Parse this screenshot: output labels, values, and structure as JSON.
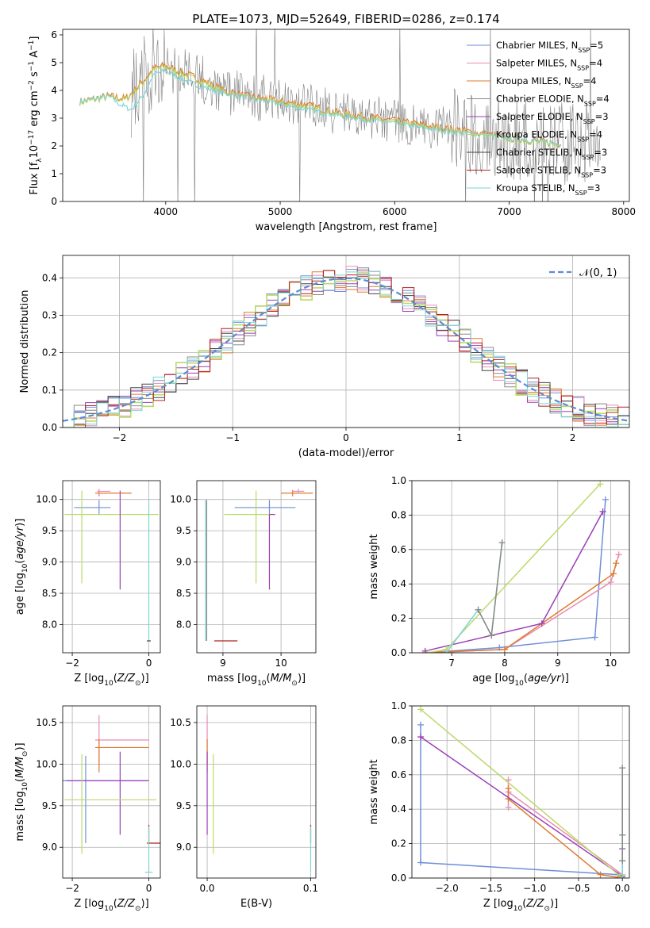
{
  "figure_title": "PLATE=1073, MJD=52649, FIBERID=0286, z=0.174",
  "colors": {
    "chabrier_miles": "#6f8fd9",
    "salpeter_miles": "#e88db5",
    "kroupa_miles": "#e07a2f",
    "chabrier_elodie": "#888888",
    "salpeter_elodie": "#9b3fb5",
    "kroupa_elodie": "#bcd96a",
    "chabrier_stelib": "#444444",
    "salpeter_stelib": "#b22222",
    "kroupa_stelib": "#7fd3d3",
    "data": "#808080",
    "normal_curve": "#5b8bd6"
  },
  "chart_data": [
    {
      "type": "line",
      "name": "spectrum",
      "xlabel": "wavelength [Angstrom, rest frame]",
      "ylabel": "Flux [f_λ 10^-17 erg cm^-2 s^-1 A^-1]",
      "xlim": [
        3100,
        8050
      ],
      "ylim": [
        0,
        6.2
      ],
      "xticks": [
        4000,
        5000,
        6000,
        7000,
        8000
      ],
      "yticks": [
        0,
        1,
        2,
        3,
        4,
        5,
        6
      ],
      "legend": [
        {
          "label": "Chabrier MILES, N",
          "sub": "SSP",
          "value": "=5"
        },
        {
          "label": "Salpeter MILES, N",
          "sub": "SSP",
          "value": "=4"
        },
        {
          "label": "Kroupa MILES, N",
          "sub": "SSP",
          "value": "=4"
        },
        {
          "label": "Chabrier ELODIE, N",
          "sub": "SSP",
          "value": "=4"
        },
        {
          "label": "Salpeter ELODIE, N",
          "sub": "SSP",
          "value": "=3"
        },
        {
          "label": "Kroupa ELODIE, N",
          "sub": "SSP",
          "value": "=4"
        },
        {
          "label": "Chabrier STELIB, N",
          "sub": "SSP",
          "value": "=3"
        },
        {
          "label": "Salpeter STELIB, N",
          "sub": "SSP",
          "value": "=3"
        },
        {
          "label": "Kroupa STELIB, N",
          "sub": "SSP",
          "value": "=3"
        }
      ],
      "continuum_x": [
        3250,
        3500,
        3650,
        3750,
        3900,
        4000,
        4100,
        4300,
        4500,
        4700,
        5000,
        5200,
        5500,
        6000,
        6500,
        7000,
        7200,
        7400
      ],
      "continuum_y": [
        3.6,
        3.8,
        3.7,
        4.1,
        4.8,
        4.9,
        4.7,
        4.4,
        4.0,
        3.8,
        3.6,
        3.5,
        3.2,
        2.9,
        2.6,
        2.3,
        2.2,
        2.1
      ],
      "blue_model_x": [
        3250,
        3500,
        3600,
        3700,
        3800,
        3900,
        4000,
        4200,
        4500,
        5000,
        5500,
        6000,
        6500,
        7000,
        7400
      ],
      "blue_model_y": [
        3.6,
        3.8,
        3.5,
        3.3,
        3.8,
        4.6,
        4.7,
        4.3,
        3.9,
        3.5,
        3.1,
        2.8,
        2.5,
        2.3,
        2.1
      ],
      "noise_range": [
        3700,
        7800
      ]
    },
    {
      "type": "histogram",
      "name": "residuals",
      "xlabel": "(data-model)/error",
      "ylabel": "Normed distribution",
      "xlim": [
        -2.5,
        2.5
      ],
      "ylim": [
        0,
        0.46
      ],
      "xticks": [
        -2,
        -1,
        0,
        1,
        2
      ],
      "yticks": [
        0.0,
        0.1,
        0.2,
        0.3,
        0.4
      ],
      "bin_width": 0.1,
      "legend_label": "𝒩(0, 1)",
      "curve": {
        "mean": 0,
        "sigma": 1
      }
    },
    {
      "type": "errorbar",
      "name": "age-vs-Z",
      "xlabel": "Z [log10(Z/Z⊙)]",
      "ylabel": "age  [log10(age/yr)]",
      "xlim": [
        -2.25,
        0.3
      ],
      "ylim": [
        7.55,
        10.3
      ],
      "xticks": [
        -2,
        0
      ],
      "yticks": [
        8.0,
        8.5,
        9.0,
        9.5,
        10.0
      ],
      "points": [
        {
          "c": "chabrier_miles",
          "x": -1.3,
          "y": 9.87,
          "xe": [
            0.65,
            0.3
          ],
          "ye": [
            0.12,
            0.12
          ]
        },
        {
          "c": "kroupa_miles",
          "x": -1.3,
          "y": 10.1,
          "xe": [
            0.1,
            0.85
          ],
          "ye": [
            0.05,
            0.05
          ]
        },
        {
          "c": "salpeter_miles",
          "x": -1.3,
          "y": 10.13,
          "xe": [
            0.05,
            0.3
          ],
          "ye": [
            0.04,
            0.04
          ]
        },
        {
          "c": "kroupa_elodie",
          "x": -1.75,
          "y": 9.76,
          "xe": [
            0.45,
            2.0
          ],
          "ye": [
            1.1,
            0.38
          ]
        },
        {
          "c": "salpeter_elodie",
          "x": -0.75,
          "y": 9.76,
          "xe": [
            0.0,
            0.0
          ],
          "ye": [
            1.2,
            0.38
          ]
        },
        {
          "c": "kroupa_stelib",
          "x": 0.0,
          "y": 7.74,
          "xe": [
            0.05,
            0.05
          ],
          "ye": [
            0.0,
            2.25
          ]
        },
        {
          "c": "chabrier_stelib",
          "x": 0.0,
          "y": 7.74,
          "xe": [
            0.05,
            0.05
          ],
          "ye": [
            0.0,
            0.0
          ]
        }
      ]
    },
    {
      "type": "errorbar",
      "name": "age-vs-mass",
      "xlabel": "mass [log10(M/M⊙)]",
      "ylabel": "",
      "xlim": [
        8.55,
        10.6
      ],
      "ylim": [
        7.55,
        10.3
      ],
      "xticks": [
        9,
        10
      ],
      "yticks": [
        8.0,
        8.5,
        9.0,
        9.5,
        10.0
      ],
      "points": [
        {
          "c": "chabrier_miles",
          "x": 9.8,
          "y": 9.87,
          "xe": [
            0.6,
            0.45
          ],
          "ye": [
            0.12,
            0.12
          ]
        },
        {
          "c": "kroupa_miles",
          "x": 10.2,
          "y": 10.1,
          "xe": [
            0.2,
            0.35
          ],
          "ye": [
            0.05,
            0.05
          ]
        },
        {
          "c": "salpeter_miles",
          "x": 10.3,
          "y": 10.13,
          "xe": [
            0.1,
            0.1
          ],
          "ye": [
            0.04,
            0.04
          ]
        },
        {
          "c": "kroupa_elodie",
          "x": 9.57,
          "y": 9.76,
          "xe": [
            0.55,
            0.3
          ],
          "ye": [
            1.1,
            0.38
          ]
        },
        {
          "c": "salpeter_elodie",
          "x": 9.8,
          "y": 9.76,
          "xe": [
            0.0,
            0.1
          ],
          "ye": [
            1.2,
            0.0
          ]
        },
        {
          "c": "chabrier_elodie",
          "x": 8.72,
          "y": 7.74,
          "xe": [
            0.0,
            0.0
          ],
          "ye": [
            0.0,
            2.25
          ]
        },
        {
          "c": "kroupa_stelib",
          "x": 8.7,
          "y": 7.74,
          "xe": [
            0.0,
            0.0
          ],
          "ye": [
            0.0,
            2.25
          ]
        },
        {
          "c": "salpeter_stelib",
          "x": 9.05,
          "y": 7.74,
          "xe": [
            0.2,
            0.2
          ],
          "ye": [
            0.0,
            0.0
          ]
        }
      ]
    },
    {
      "type": "line",
      "name": "weight-vs-age",
      "xlabel": "age  [log10(age/yr)]",
      "ylabel": "mass weight",
      "xlim": [
        6.25,
        10.35
      ],
      "ylim": [
        0,
        1
      ],
      "xticks": [
        7,
        8,
        9,
        10
      ],
      "yticks": [
        0.0,
        0.2,
        0.4,
        0.6,
        0.8,
        1.0
      ],
      "series": [
        {
          "c": "chabrier_miles",
          "x": [
            6.5,
            7.9,
            9.7,
            9.9
          ],
          "y": [
            0.0,
            0.03,
            0.09,
            0.89
          ]
        },
        {
          "c": "salpeter_miles",
          "x": [
            6.5,
            8.0,
            10.0,
            10.15
          ],
          "y": [
            0.0,
            0.02,
            0.41,
            0.57
          ]
        },
        {
          "c": "kroupa_miles",
          "x": [
            6.5,
            8.0,
            10.05,
            10.1
          ],
          "y": [
            0.0,
            0.02,
            0.46,
            0.52
          ]
        },
        {
          "c": "salpeter_elodie",
          "x": [
            6.5,
            8.7,
            9.85
          ],
          "y": [
            0.01,
            0.17,
            0.82
          ]
        },
        {
          "c": "kroupa_elodie",
          "x": [
            6.55,
            6.9,
            9.8
          ],
          "y": [
            0.0,
            0.02,
            0.98
          ]
        },
        {
          "c": "kroupa_stelib",
          "x": [
            6.9,
            7.5,
            7.75,
            7.95
          ],
          "y": [
            0.0,
            0.25,
            0.1,
            0.64
          ]
        },
        {
          "c": "chabrier_elodie",
          "x": [
            7.5,
            7.75,
            7.95
          ],
          "y": [
            0.25,
            0.1,
            0.64
          ]
        }
      ]
    },
    {
      "type": "errorbar",
      "name": "mass-vs-Z",
      "xlabel": "Z [log10(Z/Z⊙)]",
      "ylabel": "mass [log10(M/M⊙)]",
      "xlim": [
        -2.25,
        0.3
      ],
      "ylim": [
        8.63,
        10.7
      ],
      "xticks": [
        -2,
        0
      ],
      "yticks": [
        9.0,
        9.5,
        10.0,
        10.5
      ],
      "points": [
        {
          "c": "salpeter_miles",
          "x": -1.3,
          "y": 10.29,
          "xe": [
            0.1,
            1.3
          ],
          "ye": [
            0.3,
            0.3
          ]
        },
        {
          "c": "kroupa_miles",
          "x": -1.3,
          "y": 10.2,
          "xe": [
            0.1,
            1.3
          ],
          "ye": [
            0.3,
            0.1
          ]
        },
        {
          "c": "chabrier_miles",
          "x": -1.65,
          "y": 9.8,
          "xe": [
            0.6,
            1.65
          ],
          "ye": [
            0.75,
            0.3
          ]
        },
        {
          "c": "salpeter_elodie",
          "x": -0.75,
          "y": 9.8,
          "xe": [
            1.4,
            0.75
          ],
          "ye": [
            0.65,
            0.35
          ]
        },
        {
          "c": "kroupa_elodie",
          "x": -1.75,
          "y": 9.57,
          "xe": [
            0.45,
            1.95
          ],
          "ye": [
            0.65,
            0.55
          ]
        },
        {
          "c": "salpeter_stelib",
          "x": 0.0,
          "y": 9.05,
          "xe": [
            0.05,
            0.3
          ],
          "ye": [
            0.0,
            0.22
          ]
        },
        {
          "c": "kroupa_stelib",
          "x": 0.0,
          "y": 8.7,
          "xe": [
            0.1,
            0.1
          ],
          "ye": [
            0.0,
            0.55
          ]
        }
      ]
    },
    {
      "type": "errorbar",
      "name": "mass-vs-ebv",
      "xlabel": "E(B-V)",
      "ylabel": "",
      "xlim": [
        -0.01,
        0.105
      ],
      "ylim": [
        8.63,
        10.7
      ],
      "xticks": [
        0.0,
        0.1
      ],
      "yticks": [
        9.0,
        9.5,
        10.0,
        10.5
      ],
      "points": [
        {
          "c": "salpeter_miles",
          "x": 0.0,
          "y": 10.29,
          "xe": [
            0,
            0
          ],
          "ye": [
            0.3,
            0.3
          ]
        },
        {
          "c": "kroupa_miles",
          "x": 0.0,
          "y": 10.2,
          "xe": [
            0,
            0
          ],
          "ye": [
            0.3,
            0.1
          ]
        },
        {
          "c": "salpeter_elodie",
          "x": 0.0,
          "y": 9.8,
          "xe": [
            0,
            0
          ],
          "ye": [
            0.65,
            0.35
          ]
        },
        {
          "c": "kroupa_elodie",
          "x": 0.006,
          "y": 9.57,
          "xe": [
            0,
            0
          ],
          "ye": [
            0.65,
            0.55
          ]
        },
        {
          "c": "salpeter_stelib",
          "x": 0.1,
          "y": 9.05,
          "xe": [
            0,
            0
          ],
          "ye": [
            0.0,
            0.22
          ]
        },
        {
          "c": "kroupa_stelib",
          "x": 0.1,
          "y": 8.7,
          "xe": [
            0,
            0
          ],
          "ye": [
            0.0,
            0.55
          ]
        }
      ]
    },
    {
      "type": "line",
      "name": "weight-vs-Z",
      "xlabel": "Z [log10(Z/Z⊙)]",
      "ylabel": "mass weight",
      "xlim": [
        -2.4,
        0.08
      ],
      "ylim": [
        0,
        1
      ],
      "xticks": [
        -2.0,
        -1.5,
        -1.0,
        -0.5,
        0.0
      ],
      "yticks": [
        0.0,
        0.2,
        0.4,
        0.6,
        0.8,
        1.0
      ],
      "series": [
        {
          "c": "chabrier_miles",
          "x": [
            -2.3,
            -2.3,
            -0.05,
            0.0,
            0.0
          ],
          "y": [
            0.89,
            0.09,
            0.02,
            0.0,
            0.0
          ]
        },
        {
          "c": "salpeter_miles",
          "x": [
            -1.3,
            -1.3,
            -1.3,
            0.0
          ],
          "y": [
            0.57,
            0.41,
            0.5,
            0.02
          ]
        },
        {
          "c": "kroupa_miles",
          "x": [
            -1.3,
            -1.3,
            -0.25,
            0.0
          ],
          "y": [
            0.52,
            0.46,
            0.02,
            0.0
          ]
        },
        {
          "c": "salpeter_elodie",
          "x": [
            -2.3,
            0.0,
            0.0
          ],
          "y": [
            0.82,
            0.01,
            0.17
          ]
        },
        {
          "c": "kroupa_elodie",
          "x": [
            -2.3,
            0.0,
            0.0
          ],
          "y": [
            0.98,
            0.0,
            0.02
          ]
        },
        {
          "c": "kroupa_stelib",
          "x": [
            0.0,
            0.0,
            0.0,
            0.0
          ],
          "y": [
            0.64,
            0.25,
            0.1,
            0.0
          ]
        },
        {
          "c": "chabrier_elodie",
          "x": [
            0.0,
            0.0,
            0.0
          ],
          "y": [
            0.64,
            0.25,
            0.1
          ]
        }
      ]
    }
  ]
}
